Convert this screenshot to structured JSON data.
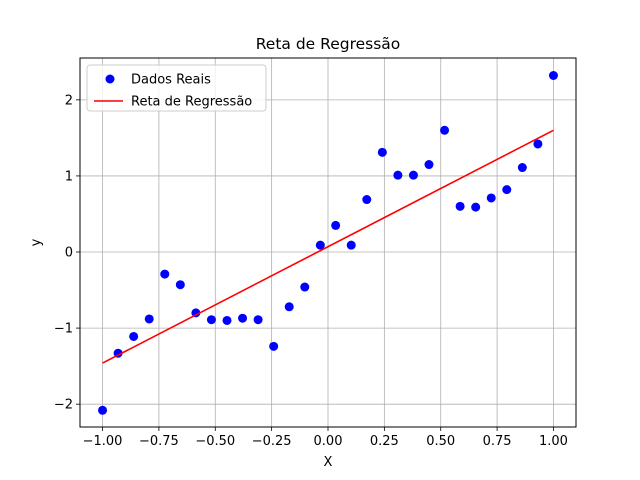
{
  "chart_data": {
    "type": "scatter",
    "title": "Reta de Regressão",
    "xlabel": "X",
    "ylabel": "y",
    "xlim": [
      -1.1,
      1.1
    ],
    "ylim": [
      -2.3,
      2.55
    ],
    "xticks": [
      -1.0,
      -0.75,
      -0.5,
      -0.25,
      0.0,
      0.25,
      0.5,
      0.75,
      1.0
    ],
    "xtick_labels": [
      "−1.00",
      "−0.75",
      "−0.50",
      "−0.25",
      "0.00",
      "0.25",
      "0.50",
      "0.75",
      "1.00"
    ],
    "yticks": [
      -2,
      -1,
      0,
      1,
      2
    ],
    "ytick_labels": [
      "−2",
      "−1",
      "0",
      "1",
      "2"
    ],
    "grid": true,
    "legend_position": "top-left",
    "series": [
      {
        "name": "Dados Reais",
        "kind": "scatter",
        "color": "#0000ff",
        "x": [
          -1.0,
          -0.931,
          -0.862,
          -0.793,
          -0.724,
          -0.655,
          -0.586,
          -0.517,
          -0.448,
          -0.379,
          -0.31,
          -0.241,
          -0.172,
          -0.103,
          -0.034,
          0.034,
          0.103,
          0.172,
          0.241,
          0.31,
          0.379,
          0.448,
          0.517,
          0.586,
          0.655,
          0.724,
          0.793,
          0.862,
          0.931,
          1.0
        ],
        "y": [
          -2.08,
          -1.33,
          -1.11,
          -0.88,
          -0.29,
          -0.43,
          -0.8,
          -0.89,
          -0.9,
          -0.87,
          -0.89,
          -1.24,
          -0.72,
          -0.46,
          0.09,
          0.35,
          0.09,
          0.69,
          1.31,
          1.01,
          1.01,
          1.15,
          1.6,
          0.6,
          0.59,
          0.71,
          0.82,
          1.11,
          1.42,
          2.32
        ]
      },
      {
        "name": "Reta de Regressão",
        "kind": "line",
        "color": "#ff0000",
        "x": [
          -1.0,
          1.0
        ],
        "y": [
          -1.46,
          1.6
        ]
      }
    ]
  }
}
